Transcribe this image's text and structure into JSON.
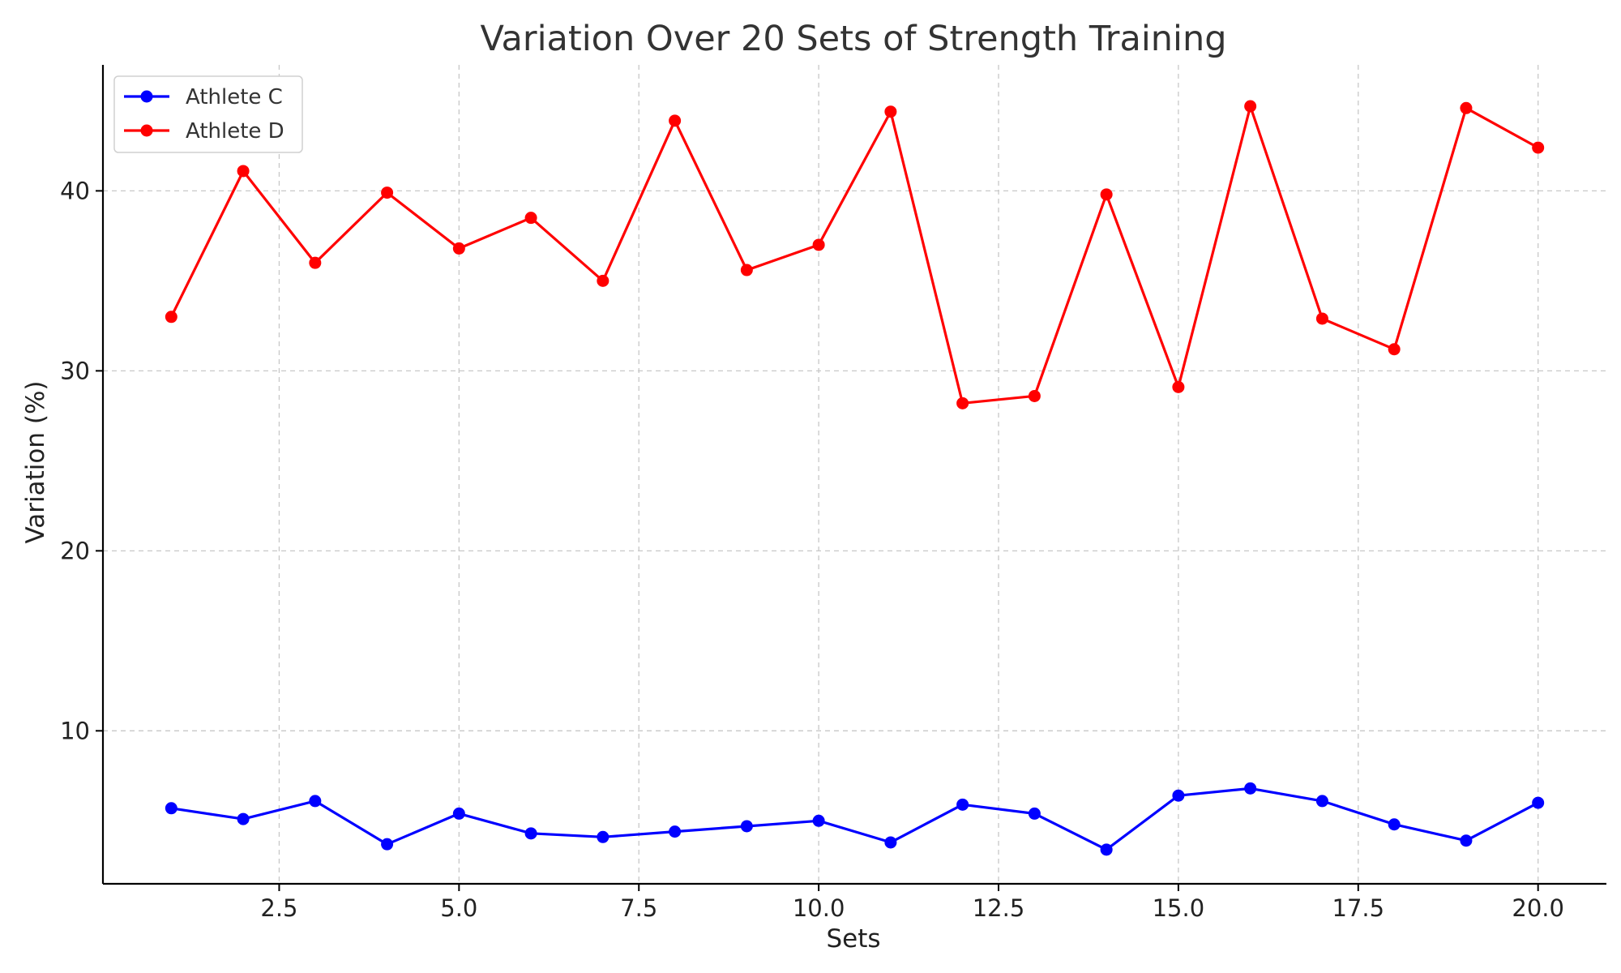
{
  "chart_data": {
    "type": "line",
    "title": "Variation Over 20 Sets of Strength Training",
    "xlabel": "Sets",
    "ylabel": "Variation (%)",
    "xlim": [
      0.05,
      20.95
    ],
    "ylim": [
      1.5,
      47
    ],
    "x_ticks": [
      2.5,
      5.0,
      7.5,
      10.0,
      12.5,
      15.0,
      17.5,
      20.0
    ],
    "x_tick_labels": [
      "2.5",
      "5.0",
      "7.5",
      "10.0",
      "12.5",
      "15.0",
      "17.5",
      "20.0"
    ],
    "y_ticks": [
      10,
      20,
      30,
      40
    ],
    "y_tick_labels": [
      "10",
      "20",
      "30",
      "40"
    ],
    "grid": true,
    "legend_position": "top-left",
    "x": [
      1,
      2,
      3,
      4,
      5,
      6,
      7,
      8,
      9,
      10,
      11,
      12,
      13,
      14,
      15,
      16,
      17,
      18,
      19,
      20
    ],
    "series": [
      {
        "name": "Athlete C",
        "color": "#0000ff",
        "values": [
          5.7,
          5.1,
          6.1,
          3.7,
          5.4,
          4.3,
          4.1,
          4.4,
          4.7,
          5.0,
          3.8,
          5.9,
          5.4,
          3.4,
          6.4,
          6.8,
          6.1,
          4.8,
          3.9,
          6.0
        ]
      },
      {
        "name": "Athlete D",
        "color": "#ff0000",
        "values": [
          33.0,
          41.1,
          36.0,
          39.9,
          36.8,
          38.5,
          35.0,
          43.9,
          35.6,
          37.0,
          44.4,
          28.2,
          28.6,
          39.8,
          29.1,
          44.7,
          32.9,
          31.2,
          44.6,
          42.4
        ]
      }
    ]
  }
}
